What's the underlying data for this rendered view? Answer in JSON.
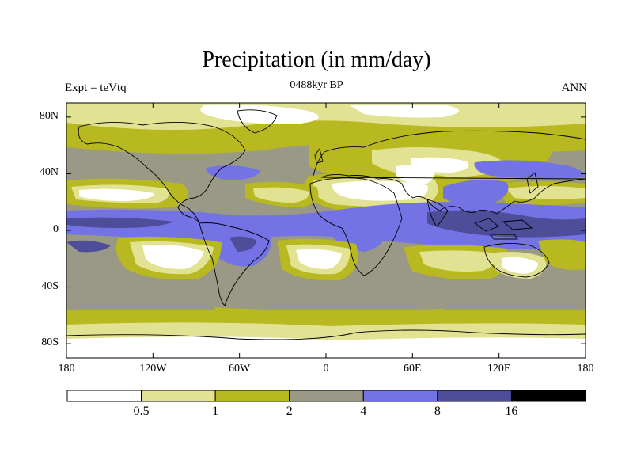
{
  "title": "Precipitation (in mm/day)",
  "subtitle": "0488kyr BP",
  "left_label": "Expt = teVtq",
  "right_label": "ANN",
  "lat_axis": {
    "labels": [
      "80N",
      "40N",
      "0",
      "40S",
      "80S"
    ],
    "values": [
      80,
      40,
      0,
      -40,
      -80
    ]
  },
  "lon_axis": {
    "labels": [
      "180",
      "120W",
      "60W",
      "0",
      "60E",
      "120E",
      "180"
    ],
    "values": [
      -180,
      -120,
      -60,
      0,
      60,
      120,
      180
    ]
  },
  "colorbar": {
    "levels": [
      "0.5",
      "1",
      "2",
      "4",
      "8",
      "16"
    ],
    "colors": [
      "#ffffff",
      "#e2e293",
      "#b8b820",
      "#999986",
      "#7373e6",
      "#4d4d99",
      "#000000"
    ]
  },
  "map_colors": {
    "dry": "#ffffff",
    "low": "#e2e293",
    "mid": "#b8b820",
    "moderate": "#999986",
    "wet": "#7373e6",
    "very_wet": "#4d4d99",
    "coast": "#000000"
  }
}
